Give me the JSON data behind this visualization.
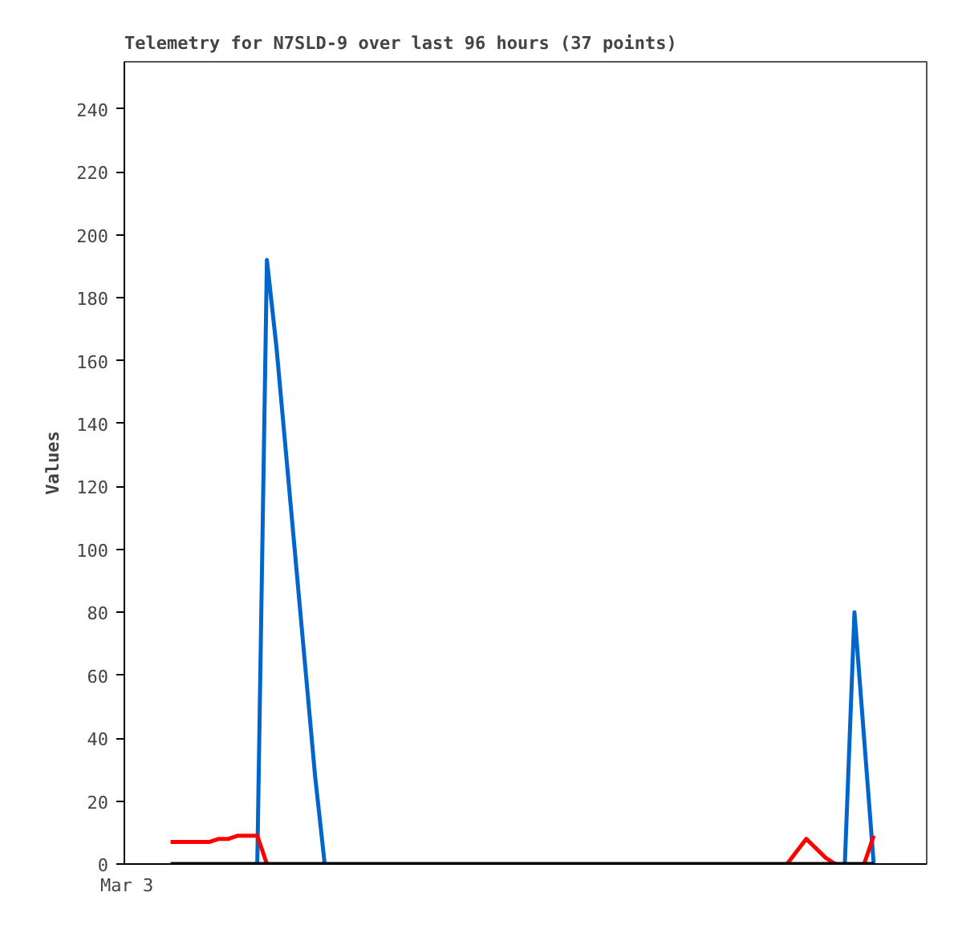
{
  "chart_data": {
    "type": "line",
    "title": "Telemetry for N7SLD-9 over last 96 hours (37 points)",
    "ylabel": "Values",
    "annotations": [
      "Mar 3"
    ],
    "ylim": [
      0,
      255
    ],
    "yticks": [
      0,
      20,
      40,
      60,
      80,
      100,
      120,
      140,
      160,
      180,
      200,
      220,
      240
    ],
    "grid": false,
    "marker": "none",
    "line_style": "solid",
    "categories": [
      null,
      null,
      null,
      null,
      null,
      null,
      null,
      null,
      null,
      null,
      null,
      null,
      null,
      null,
      null,
      null,
      null,
      null,
      null,
      null,
      null,
      null,
      null,
      null,
      null,
      null,
      null,
      null,
      null,
      null,
      null,
      null,
      null,
      null,
      null,
      null,
      null,
      null,
      null,
      null,
      null,
      null,
      null,
      null,
      null,
      null,
      null,
      null,
      null,
      null,
      null,
      null,
      null,
      null,
      null,
      null,
      null,
      null,
      null,
      null,
      null,
      null,
      null,
      null,
      null,
      null,
      null,
      null,
      null,
      null,
      null,
      null,
      null,
      null
    ],
    "series": [
      {
        "color": "#0066cc",
        "values": [
          null,
          null,
          null,
          null,
          null,
          null,
          null,
          null,
          null,
          0,
          192,
          164,
          130,
          96,
          62,
          28,
          0,
          null,
          null,
          null,
          null,
          null,
          null,
          null,
          null,
          null,
          null,
          null,
          null,
          null,
          null,
          null,
          null,
          null,
          null,
          null,
          null,
          null,
          null,
          null,
          null,
          null,
          null,
          null,
          null,
          null,
          null,
          null,
          null,
          null,
          null,
          null,
          null,
          null,
          null,
          null,
          null,
          null,
          null,
          null,
          null,
          null,
          null,
          null,
          null,
          null,
          null,
          null,
          null,
          null,
          0,
          80,
          40,
          0
        ]
      },
      {
        "color": "#ff0000",
        "values": [
          7,
          7,
          7,
          7,
          7,
          8,
          8,
          9,
          9,
          9,
          0,
          null,
          null,
          null,
          null,
          null,
          null,
          null,
          null,
          null,
          null,
          null,
          null,
          null,
          null,
          null,
          null,
          null,
          null,
          null,
          null,
          null,
          null,
          null,
          null,
          null,
          null,
          null,
          null,
          null,
          null,
          null,
          null,
          null,
          null,
          null,
          null,
          null,
          null,
          null,
          null,
          null,
          null,
          null,
          null,
          null,
          null,
          null,
          null,
          null,
          null,
          null,
          null,
          null,
          0,
          4,
          8,
          5,
          2,
          0,
          null,
          null,
          0,
          9
        ]
      },
      {
        "color": "#000000",
        "values": [
          0,
          0,
          0,
          0,
          0,
          0,
          0,
          0,
          0,
          0,
          0,
          0,
          0,
          0,
          0,
          0,
          0,
          0,
          0,
          0,
          0,
          0,
          0,
          0,
          0,
          0,
          0,
          0,
          0,
          0,
          0,
          0,
          0,
          0,
          0,
          0,
          0,
          0,
          0,
          0,
          0,
          0,
          0,
          0,
          0,
          0,
          0,
          0,
          0,
          0,
          0,
          0,
          0,
          0,
          0,
          0,
          0,
          0,
          0,
          0,
          0,
          0,
          0,
          0,
          0,
          0,
          0,
          0,
          0,
          0,
          0,
          0,
          0,
          0
        ]
      }
    ]
  }
}
